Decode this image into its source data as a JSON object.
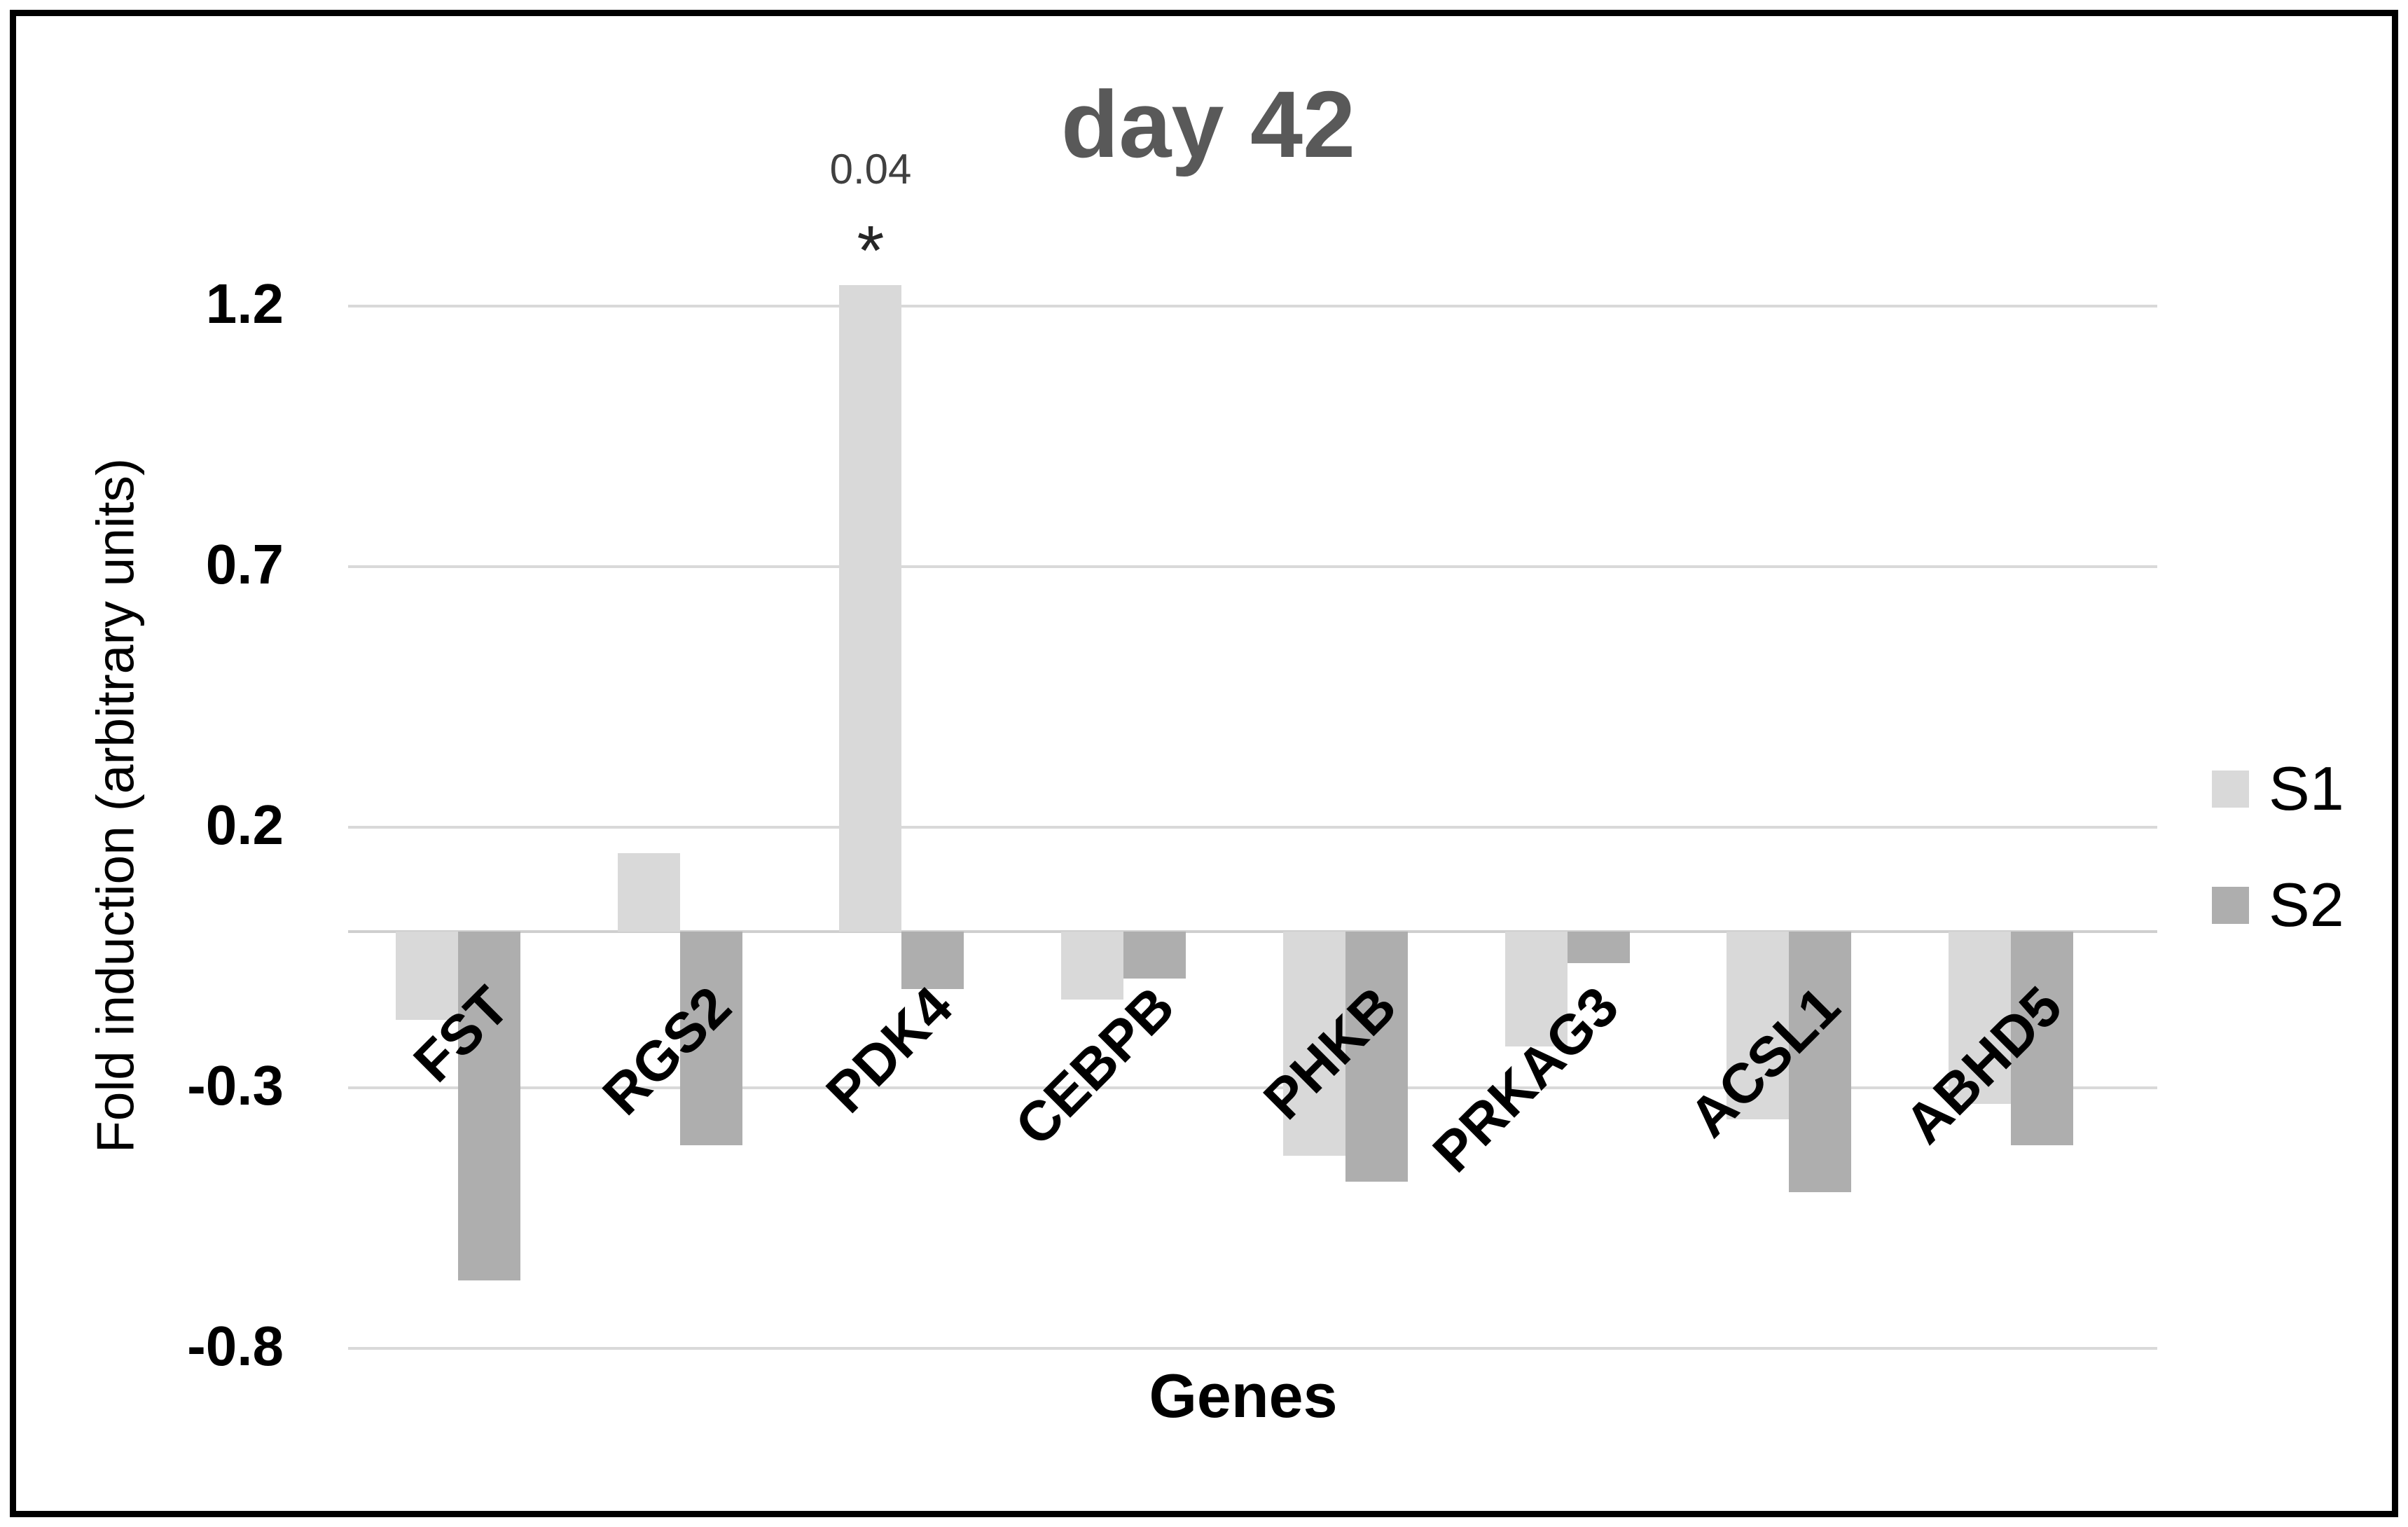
{
  "chart_data": {
    "type": "bar",
    "title": "day 42",
    "categories": [
      "FST",
      "RGS2",
      "PDK4",
      "CEBPB",
      "PHKB",
      "PRKAG3",
      "ACSL1",
      "ABHD5"
    ],
    "series": [
      {
        "name": "S1",
        "color": "#d9d9d9",
        "values": [
          -0.17,
          0.15,
          1.24,
          -0.13,
          -0.43,
          -0.22,
          -0.36,
          -0.33
        ]
      },
      {
        "name": "S2",
        "color": "#aeaeae",
        "values": [
          -0.67,
          -0.41,
          -0.11,
          -0.09,
          -0.48,
          -0.06,
          -0.5,
          -0.41
        ]
      }
    ],
    "xlabel": "Genes",
    "ylabel": "Fold induction (arbitrary units)",
    "yticks": [
      "1.2",
      "0.7",
      "0.2",
      "-0.3",
      "-0.8"
    ],
    "ylim": [
      -0.9,
      1.4
    ],
    "grid": true,
    "legend_position": "right",
    "annotations": [
      {
        "text": "0.04",
        "target": "PDK4 S1 bar"
      },
      {
        "text": "*",
        "target": "PDK4 S1 bar"
      }
    ]
  },
  "colors": {
    "series_s1": "#d9d9d9",
    "series_s2": "#aeaeae",
    "gridline": "#d9d9d9",
    "zero_line": "#cfcfcf",
    "title_text": "#595959",
    "annotation_text": "#404040",
    "star_text": "#262626",
    "axis_text": "#000000",
    "frame_border": "#000000",
    "background": "#ffffff"
  }
}
